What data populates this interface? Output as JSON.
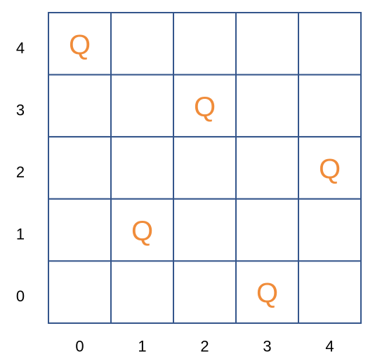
{
  "board": {
    "size": 5,
    "queen_symbol": "Q",
    "row_labels": [
      "4",
      "3",
      "2",
      "1",
      "0"
    ],
    "col_labels": [
      "0",
      "1",
      "2",
      "3",
      "4"
    ],
    "queens": [
      {
        "row": 4,
        "col": 0
      },
      {
        "row": 3,
        "col": 2
      },
      {
        "row": 2,
        "col": 4
      },
      {
        "row": 1,
        "col": 1
      },
      {
        "row": 0,
        "col": 3
      }
    ],
    "colors": {
      "grid_line": "#34558b",
      "queen": "#f08c3a",
      "label": "#000000"
    }
  }
}
